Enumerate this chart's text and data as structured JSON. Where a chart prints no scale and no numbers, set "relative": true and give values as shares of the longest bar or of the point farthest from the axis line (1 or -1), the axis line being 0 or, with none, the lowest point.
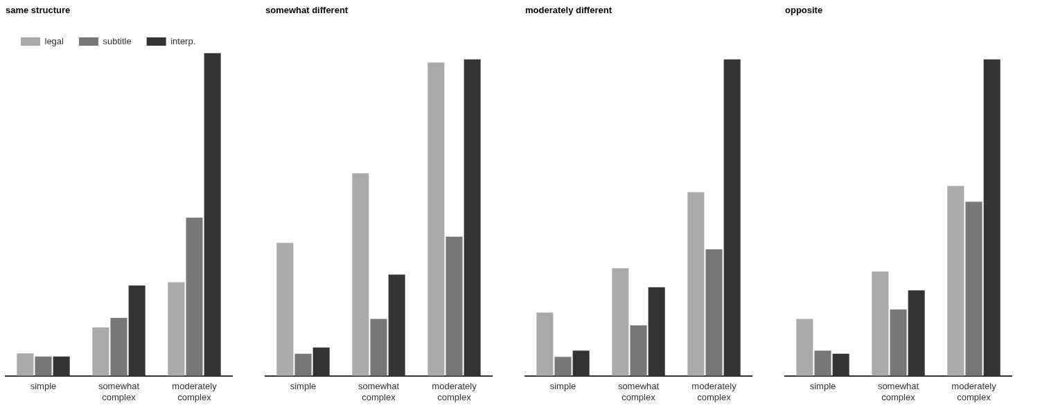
{
  "chart_data": [
    {
      "type": "bar",
      "title": "same structure",
      "categories": [
        "simple",
        "somewhat complex",
        "moderately complex"
      ],
      "relative": true,
      "legend": "top left",
      "series": [
        {
          "name": "legal",
          "color": "#aaaaaa",
          "values": [
            0.07,
            0.15,
            0.29
          ]
        },
        {
          "name": "subtitle",
          "color": "#777777",
          "values": [
            0.06,
            0.18,
            0.49
          ]
        },
        {
          "name": "interp.",
          "color": "#333333",
          "values": [
            0.06,
            0.28,
            1
          ]
        }
      ]
    },
    {
      "type": "bar",
      "title": "somewhat different",
      "categories": [
        "simple",
        "somewhat complex",
        "moderately complex"
      ],
      "relative": true,
      "series": [
        {
          "color": "#aaaaaa",
          "values": [
            0.42,
            0.64,
            0.99
          ]
        },
        {
          "color": "#777777",
          "values": [
            0.07,
            0.18,
            0.44
          ]
        },
        {
          "color": "#333333",
          "values": [
            0.09,
            0.32,
            1
          ]
        }
      ]
    },
    {
      "type": "bar",
      "title": "moderately different",
      "categories": [
        "simple",
        "somewhat complex",
        "moderately complex"
      ],
      "relative": true,
      "series": [
        {
          "color": "#aaaaaa",
          "values": [
            0.2,
            0.34,
            0.58
          ]
        },
        {
          "color": "#777777",
          "values": [
            0.06,
            0.16,
            0.4
          ]
        },
        {
          "color": "#333333",
          "values": [
            0.08,
            0.28,
            1
          ]
        }
      ]
    },
    {
      "type": "bar",
      "title": "opposite",
      "categories": [
        "simple",
        "somewhat complex",
        "moderately complex"
      ],
      "relative": true,
      "series": [
        {
          "color": "#aaaaaa",
          "values": [
            0.18,
            0.33,
            0.6
          ]
        },
        {
          "color": "#777777",
          "values": [
            0.08,
            0.21,
            0.55
          ]
        },
        {
          "color": "#333333",
          "values": [
            0.07,
            0.27,
            1
          ]
        }
      ]
    }
  ]
}
